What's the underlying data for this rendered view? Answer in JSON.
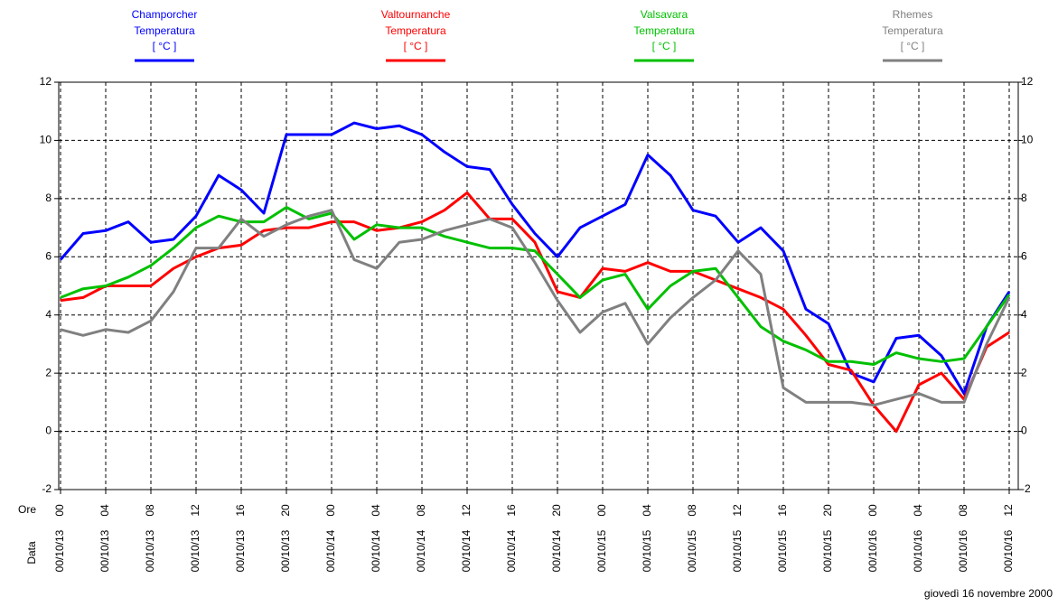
{
  "chart_data": {
    "type": "line",
    "legend_quantity": "Temperatura",
    "legend_unit": "[ °C ]",
    "x_axis_label": "Ore",
    "date_axis_label": "Data",
    "footer": "giovedì 16 novembre 2000",
    "categories": [
      "00",
      null,
      "04",
      null,
      "08",
      null,
      "12",
      null,
      "16",
      null,
      "20",
      null,
      "00",
      null,
      "04",
      null,
      "08",
      null,
      "12",
      null,
      "16",
      null,
      "20",
      null,
      "00",
      null,
      "04",
      null,
      "08",
      null,
      "12",
      null,
      "16",
      null,
      "20",
      null,
      "00",
      null,
      "04",
      null,
      "08",
      null,
      "12"
    ],
    "dates": [
      "00/10/13",
      null,
      "00/10/13",
      null,
      "00/10/13",
      null,
      "00/10/13",
      null,
      "00/10/13",
      null,
      "00/10/13",
      null,
      "00/10/14",
      null,
      "00/10/14",
      null,
      "00/10/14",
      null,
      "00/10/14",
      null,
      "00/10/14",
      null,
      "00/10/14",
      null,
      "00/10/15",
      null,
      "00/10/15",
      null,
      "00/10/15",
      null,
      "00/10/15",
      null,
      "00/10/15",
      null,
      "00/10/15",
      null,
      "00/10/16",
      null,
      "00/10/16",
      null,
      "00/10/16",
      null,
      "00/10/16"
    ],
    "ylim": [
      -2,
      12
    ],
    "yticks": [
      -2,
      0,
      2,
      4,
      6,
      8,
      10,
      12
    ],
    "grid": true,
    "series": [
      {
        "name": "Champorcher",
        "color": "#0000ff",
        "values": [
          5.9,
          6.8,
          6.9,
          7.2,
          6.5,
          6.6,
          7.4,
          8.8,
          8.3,
          7.5,
          10.2,
          10.2,
          10.2,
          10.6,
          10.4,
          10.5,
          10.2,
          9.6,
          9.1,
          9.0,
          7.8,
          6.8,
          6.0,
          7.0,
          7.4,
          7.8,
          9.5,
          8.8,
          7.6,
          7.4,
          6.5,
          7.0,
          6.2,
          4.2,
          3.7,
          2.0,
          1.7,
          3.2,
          3.3,
          2.6,
          1.3,
          3.6,
          4.8
        ]
      },
      {
        "name": "Valtournanche",
        "color": "#ff0000",
        "values": [
          4.5,
          4.6,
          5.0,
          5.0,
          5.0,
          5.6,
          6.0,
          6.3,
          6.4,
          6.9,
          7.0,
          7.0,
          7.2,
          7.2,
          6.9,
          7.0,
          7.2,
          7.6,
          8.2,
          7.3,
          7.3,
          6.5,
          4.8,
          4.6,
          5.6,
          5.5,
          5.8,
          5.5,
          5.5,
          5.2,
          4.9,
          4.6,
          4.2,
          3.3,
          2.3,
          2.1,
          0.9,
          0.0,
          1.6,
          2.0,
          1.1,
          2.9,
          3.4
        ]
      },
      {
        "name": "Valsavara",
        "color": "#00c000",
        "values": [
          4.6,
          4.9,
          5.0,
          5.3,
          5.7,
          6.3,
          7.0,
          7.4,
          7.2,
          7.2,
          7.7,
          7.3,
          7.5,
          6.6,
          7.1,
          7.0,
          7.0,
          6.7,
          6.5,
          6.3,
          6.3,
          6.2,
          5.4,
          4.6,
          5.2,
          5.4,
          4.2,
          5.0,
          5.5,
          5.6,
          4.6,
          3.6,
          3.1,
          2.8,
          2.4,
          2.4,
          2.3,
          2.7,
          2.5,
          2.4,
          2.5,
          3.6,
          4.7
        ]
      },
      {
        "name": "Rhemes",
        "color": "#808080",
        "values": [
          3.5,
          3.3,
          3.5,
          3.4,
          3.8,
          4.8,
          6.3,
          6.3,
          7.3,
          6.7,
          7.1,
          7.4,
          7.6,
          5.9,
          5.6,
          6.5,
          6.6,
          6.9,
          7.1,
          7.3,
          7.0,
          5.8,
          4.5,
          3.4,
          4.1,
          4.4,
          3.0,
          3.9,
          4.6,
          5.2,
          6.2,
          5.4,
          1.5,
          1.0,
          1.0,
          1.0,
          0.9,
          1.1,
          1.3,
          1.0,
          1.0,
          3.0,
          4.6
        ]
      }
    ]
  }
}
